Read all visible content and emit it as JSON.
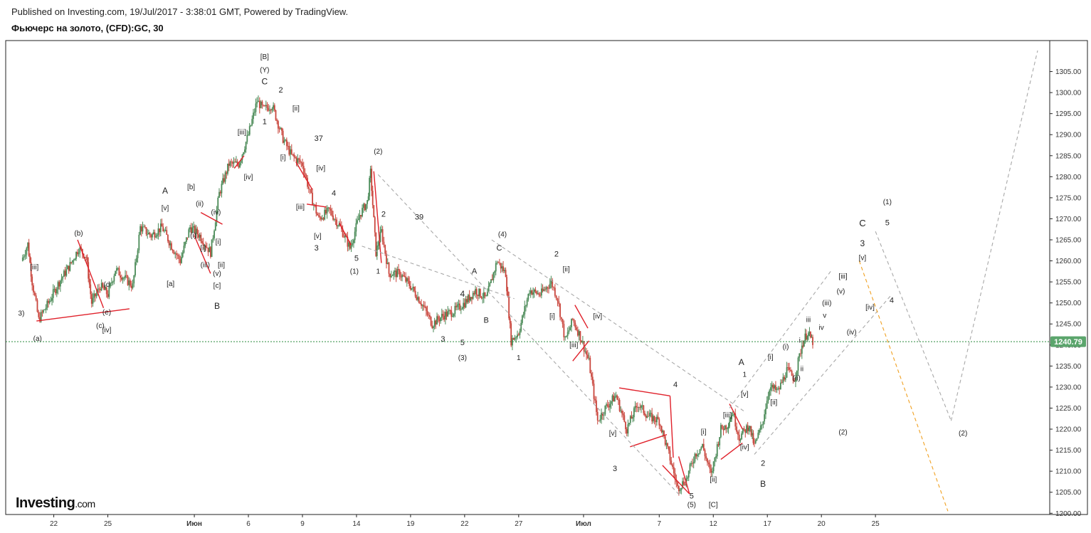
{
  "header": {
    "published": "Published on Investing.com, 19/Jul/2017 - 3:38:01 GMT, Powered by TradingView.",
    "title": "Фьючерс на золото, (CFD):GC, 30"
  },
  "logo": {
    "main": "Investing",
    "suffix": ".com"
  },
  "colors": {
    "up": "#4a8a57",
    "down": "#c9453c",
    "trendline": "#e0202a",
    "projection": "#a8a8a8",
    "projection_alt": "#f0a020",
    "accent_label": "#e8961e",
    "channel_label": "#6b7f95",
    "price_badge": "#5ba56c"
  },
  "chart_data": {
    "type": "candlestick",
    "timeframe": "30",
    "ylim": [
      1197,
      1310
    ],
    "yticks": [
      1200,
      1205,
      1210,
      1215,
      1220,
      1225,
      1230,
      1235,
      1240,
      1245,
      1250,
      1255,
      1260,
      1265,
      1270,
      1275,
      1280,
      1285,
      1290,
      1295,
      1300,
      1305
    ],
    "ytick_labels": [
      "1200.00",
      "1205.00",
      "1210.00",
      "1215.00",
      "1220.00",
      "1225.00",
      "1230.00",
      "1235.00",
      "1240.00",
      "1245.00",
      "1250.00",
      "1255.00",
      "1260.00",
      "1265.00",
      "1270.00",
      "1275.00",
      "1280.00",
      "1285.00",
      "1290.00",
      "1295.00",
      "1300.00",
      "1305.00"
    ],
    "xlim": [
      0,
      94
    ],
    "xticks": [
      {
        "t": 3,
        "label": "22",
        "month": false
      },
      {
        "t": 8,
        "label": "25",
        "month": false
      },
      {
        "t": 16,
        "label": "Июн",
        "month": true
      },
      {
        "t": 21,
        "label": "6",
        "month": false
      },
      {
        "t": 26,
        "label": "9",
        "month": false
      },
      {
        "t": 31,
        "label": "14",
        "month": false
      },
      {
        "t": 36,
        "label": "19",
        "month": false
      },
      {
        "t": 41,
        "label": "22",
        "month": false
      },
      {
        "t": 46,
        "label": "27",
        "month": false
      },
      {
        "t": 52,
        "label": "Июл",
        "month": true
      },
      {
        "t": 59,
        "label": "7",
        "month": false
      },
      {
        "t": 64,
        "label": "12",
        "month": false
      },
      {
        "t": 69,
        "label": "17",
        "month": false
      },
      {
        "t": 74,
        "label": "20",
        "month": false
      },
      {
        "t": 79,
        "label": "25",
        "month": false
      }
    ],
    "last_price": 1240.79,
    "last_price_label": "1240.79",
    "price_path": [
      [
        0,
        1260
      ],
      [
        0.6,
        1264
      ],
      [
        1,
        1255
      ],
      [
        1.6,
        1246
      ],
      [
        2.5,
        1250
      ],
      [
        3.5,
        1255
      ],
      [
        4.5,
        1259
      ],
      [
        5.3,
        1263
      ],
      [
        6,
        1261
      ],
      [
        6.5,
        1250
      ],
      [
        7.3,
        1254
      ],
      [
        8,
        1252
      ],
      [
        8.7,
        1258
      ],
      [
        9.5,
        1256
      ],
      [
        10.3,
        1254
      ],
      [
        11,
        1268
      ],
      [
        12,
        1266
      ],
      [
        13,
        1268
      ],
      [
        14,
        1263
      ],
      [
        14.7,
        1260
      ],
      [
        15.6,
        1268
      ],
      [
        16.5,
        1266
      ],
      [
        17.5,
        1262
      ],
      [
        18.3,
        1276
      ],
      [
        19.2,
        1283
      ],
      [
        20.1,
        1283
      ],
      [
        21,
        1290
      ],
      [
        21.8,
        1298
      ],
      [
        22.4,
        1296
      ],
      [
        23.2,
        1297
      ],
      [
        24.2,
        1289
      ],
      [
        25,
        1285
      ],
      [
        26,
        1283
      ],
      [
        26.7,
        1276
      ],
      [
        27.5,
        1270
      ],
      [
        28.5,
        1272
      ],
      [
        29.5,
        1268
      ],
      [
        30.4,
        1263
      ],
      [
        31.3,
        1271
      ],
      [
        32,
        1274
      ],
      [
        32.3,
        1281
      ],
      [
        32.8,
        1262
      ],
      [
        33.3,
        1267
      ],
      [
        34,
        1257
      ],
      [
        35,
        1257
      ],
      [
        36,
        1254
      ],
      [
        37,
        1250
      ],
      [
        38,
        1245
      ],
      [
        39,
        1247
      ],
      [
        40,
        1248
      ],
      [
        41,
        1250
      ],
      [
        42,
        1253
      ],
      [
        43,
        1251
      ],
      [
        44,
        1260
      ],
      [
        44.8,
        1257
      ],
      [
        45.3,
        1241
      ],
      [
        46,
        1243
      ],
      [
        47,
        1253
      ],
      [
        48,
        1252
      ],
      [
        49,
        1255
      ],
      [
        49.6,
        1251
      ],
      [
        50.3,
        1241
      ],
      [
        51,
        1246
      ],
      [
        51.7,
        1242
      ],
      [
        52.5,
        1236
      ],
      [
        53.3,
        1222
      ],
      [
        54,
        1225
      ],
      [
        55,
        1228
      ],
      [
        56,
        1220
      ],
      [
        57,
        1226
      ],
      [
        58,
        1223
      ],
      [
        59,
        1222
      ],
      [
        60,
        1213
      ],
      [
        60.7,
        1206
      ],
      [
        61.5,
        1208
      ],
      [
        62.3,
        1214
      ],
      [
        63,
        1216
      ],
      [
        63.8,
        1209
      ],
      [
        64.7,
        1220
      ],
      [
        65.3,
        1221
      ],
      [
        65.8,
        1224
      ],
      [
        66.4,
        1218
      ],
      [
        67.3,
        1221
      ],
      [
        67.8,
        1216
      ],
      [
        68.5,
        1221
      ],
      [
        69.2,
        1230
      ],
      [
        70,
        1229
      ],
      [
        70.8,
        1234
      ],
      [
        71.5,
        1232
      ],
      [
        72.2,
        1240
      ],
      [
        72.7,
        1243
      ],
      [
        73.2,
        1240.79
      ]
    ],
    "trendlines": [
      {
        "color": "red",
        "points": [
          [
            1.4,
            1245.7
          ],
          [
            10,
            1248.6
          ]
        ]
      },
      {
        "color": "red",
        "points": [
          [
            5.2,
            1265
          ],
          [
            7.6,
            1248.8
          ]
        ]
      },
      {
        "color": "red",
        "points": [
          [
            16.6,
            1271.5
          ],
          [
            18.6,
            1268.7
          ]
        ]
      },
      {
        "color": "red",
        "points": [
          [
            16.0,
            1266
          ],
          [
            17.5,
            1257
          ]
        ]
      },
      {
        "color": "red",
        "points": [
          [
            19.7,
            1282
          ],
          [
            20.6,
            1285
          ]
        ]
      },
      {
        "color": "red",
        "points": [
          [
            25.4,
            1283.5
          ],
          [
            26.9,
            1277
          ]
        ]
      },
      {
        "color": "red",
        "points": [
          [
            26.4,
            1273.5
          ],
          [
            28.2,
            1272.8
          ]
        ]
      },
      {
        "color": "red",
        "points": [
          [
            29.4,
            1269
          ],
          [
            30.5,
            1263.8
          ]
        ]
      },
      {
        "color": "red",
        "points": [
          [
            32.6,
            1281.3
          ],
          [
            33.3,
            1259.5
          ]
        ]
      },
      {
        "color": "red",
        "points": [
          [
            51.2,
            1249.5
          ],
          [
            52.4,
            1244
          ]
        ]
      },
      {
        "color": "red",
        "points": [
          [
            51.0,
            1236.2
          ],
          [
            52.5,
            1241
          ]
        ]
      },
      {
        "color": "red",
        "points": [
          [
            55.3,
            1229.8
          ],
          [
            60,
            1227.9
          ]
        ]
      },
      {
        "color": "red",
        "points": [
          [
            56.3,
            1215.8
          ],
          [
            59.7,
            1218.7
          ]
        ]
      },
      {
        "color": "red",
        "points": [
          [
            60,
            1227.9
          ],
          [
            60.3,
            1213.2
          ]
        ]
      },
      {
        "color": "red",
        "points": [
          [
            59.3,
            1211.4
          ],
          [
            61.8,
            1204.6
          ]
        ]
      },
      {
        "color": "red",
        "points": [
          [
            60.8,
            1213.5
          ],
          [
            61.8,
            1204.6
          ]
        ]
      },
      {
        "color": "red",
        "points": [
          [
            64.7,
            1212.8
          ],
          [
            66.7,
            1216.7
          ]
        ]
      },
      {
        "color": "red",
        "points": [
          [
            65.5,
            1226
          ],
          [
            66.7,
            1220
          ]
        ]
      },
      {
        "color": "gray_dash",
        "points": [
          [
            33,
            1280.5
          ],
          [
            61,
            1204
          ]
        ]
      },
      {
        "color": "gray_dash",
        "points": [
          [
            43.5,
            1265
          ],
          [
            67,
            1224
          ]
        ]
      },
      {
        "color": "gray_dash",
        "points": [
          [
            31.5,
            1263.5
          ],
          [
            45.6,
            1251
          ]
        ]
      },
      {
        "color": "gray_dash",
        "points": [
          [
            65.5,
            1225
          ],
          [
            75,
            1258
          ]
        ]
      },
      {
        "color": "gray_dash",
        "points": [
          [
            67.8,
            1214
          ],
          [
            80.5,
            1252
          ]
        ]
      },
      {
        "color": "gray_dash",
        "points": [
          [
            79,
            1267
          ],
          [
            86,
            1222
          ]
        ]
      },
      {
        "color": "gray_dash",
        "points": [
          [
            86,
            1222
          ],
          [
            94,
            1310
          ]
        ]
      },
      {
        "color": "orange_dash",
        "points": [
          [
            77.5,
            1260
          ],
          [
            85.7,
            1200.5
          ]
        ]
      }
    ],
    "annotations": [
      {
        "t": 1.2,
        "p": 1258,
        "text": "[iii]"
      },
      {
        "t": 0,
        "p": 1247,
        "text": "3)"
      },
      {
        "t": 1.5,
        "p": 1241,
        "text": "(a)"
      },
      {
        "t": 5.3,
        "p": 1266,
        "text": "(b)"
      },
      {
        "t": 7.3,
        "p": 1244,
        "text": "(c)"
      },
      {
        "t": 7.9,
        "p": 1253.8,
        "text": "(d"
      },
      {
        "t": 7.9,
        "p": 1247.2,
        "text": "(e)"
      },
      {
        "t": 7.9,
        "p": 1243,
        "text": "[iv]"
      },
      {
        "t": 13.3,
        "p": 1276,
        "text": "A",
        "size": 12
      },
      {
        "t": 13.3,
        "p": 1272,
        "text": "[v]"
      },
      {
        "t": 13.8,
        "p": 1254,
        "text": "[a]"
      },
      {
        "t": 15.7,
        "p": 1277,
        "text": "[b]"
      },
      {
        "t": 16.5,
        "p": 1273,
        "text": "(ii)"
      },
      {
        "t": 18,
        "p": 1271,
        "text": "(iv)"
      },
      {
        "t": 15.9,
        "p": 1265.5,
        "text": "(i)"
      },
      {
        "t": 16.8,
        "p": 1262.5,
        "text": "[i]"
      },
      {
        "t": 18.2,
        "p": 1264,
        "text": "[i]"
      },
      {
        "t": 17,
        "p": 1258.5,
        "text": "(iii)"
      },
      {
        "t": 18.5,
        "p": 1258.5,
        "text": "[ii]"
      },
      {
        "t": 18.1,
        "p": 1256.5,
        "text": "(v)"
      },
      {
        "t": 18.1,
        "p": 1253.6,
        "text": "[c]"
      },
      {
        "t": 18.1,
        "p": 1248.6,
        "text": "B",
        "size": 12
      },
      {
        "t": 22.5,
        "p": 1308,
        "text": "[B]"
      },
      {
        "t": 22.5,
        "p": 1304.8,
        "text": "(Y)"
      },
      {
        "t": 22.5,
        "p": 1302,
        "text": "C",
        "size": 12
      },
      {
        "t": 24,
        "p": 1300,
        "text": "2",
        "size": 11
      },
      {
        "t": 22.5,
        "p": 1292.5,
        "text": "1",
        "size": 11
      },
      {
        "t": 20.4,
        "p": 1290,
        "text": "[iii]"
      },
      {
        "t": 25.4,
        "p": 1295.7,
        "text": "[ii]"
      },
      {
        "t": 27.5,
        "p": 1288.5,
        "text": "37",
        "size": 11,
        "color": "channel"
      },
      {
        "t": 24.2,
        "p": 1284,
        "text": "[i]"
      },
      {
        "t": 21,
        "p": 1279.4,
        "text": "[iv]"
      },
      {
        "t": 27.7,
        "p": 1281.5,
        "text": "[iv]"
      },
      {
        "t": 28.9,
        "p": 1275.5,
        "text": "4",
        "size": 11
      },
      {
        "t": 25.8,
        "p": 1272.3,
        "text": "[iii]"
      },
      {
        "t": 27.4,
        "p": 1265.3,
        "text": "[v]"
      },
      {
        "t": 27.3,
        "p": 1262.5,
        "text": "3",
        "size": 11
      },
      {
        "t": 31,
        "p": 1260,
        "text": "5",
        "size": 11
      },
      {
        "t": 30.8,
        "p": 1257,
        "text": "(1)"
      },
      {
        "t": 33,
        "p": 1285.5,
        "text": "(2)"
      },
      {
        "t": 33.5,
        "p": 1270.5,
        "text": "2",
        "size": 11
      },
      {
        "t": 36.8,
        "p": 1269.8,
        "text": "39",
        "size": 11,
        "color": "channel"
      },
      {
        "t": 33,
        "p": 1257,
        "text": "1",
        "size": 10
      },
      {
        "t": 44.5,
        "p": 1265.8,
        "text": "(4)"
      },
      {
        "t": 44.2,
        "p": 1262.5,
        "text": "C",
        "size": 11
      },
      {
        "t": 41.9,
        "p": 1257,
        "text": "A",
        "size": 11
      },
      {
        "t": 40.8,
        "p": 1251.5,
        "text": "4",
        "size": 12
      },
      {
        "t": 43,
        "p": 1245.3,
        "text": "B",
        "size": 11
      },
      {
        "t": 39,
        "p": 1240.8,
        "text": "3",
        "size": 11
      },
      {
        "t": 40.8,
        "p": 1240,
        "text": "5",
        "size": 11
      },
      {
        "t": 40.8,
        "p": 1236.4,
        "text": "(3)"
      },
      {
        "t": 46,
        "p": 1236.4,
        "text": "1",
        "size": 10
      },
      {
        "t": 49.5,
        "p": 1261,
        "text": "2",
        "size": 11
      },
      {
        "t": 50.4,
        "p": 1257.5,
        "text": "[ii]"
      },
      {
        "t": 49.1,
        "p": 1246.3,
        "text": "[i]"
      },
      {
        "t": 53.3,
        "p": 1246.3,
        "text": "[iv]"
      },
      {
        "t": 51.1,
        "p": 1239.5,
        "text": "[iii]"
      },
      {
        "t": 54.7,
        "p": 1218.5,
        "text": "[v]"
      },
      {
        "t": 54.9,
        "p": 1210,
        "text": "3",
        "size": 11
      },
      {
        "t": 60.5,
        "p": 1230,
        "text": "4",
        "size": 11
      },
      {
        "t": 62,
        "p": 1203.5,
        "text": "5",
        "size": 11
      },
      {
        "t": 62,
        "p": 1201.5,
        "text": "(5)"
      },
      {
        "t": 63.1,
        "p": 1218.8,
        "text": "[i]"
      },
      {
        "t": 64,
        "p": 1207.5,
        "text": "[ii]"
      },
      {
        "t": 64,
        "p": 1201.5,
        "text": "[C]"
      },
      {
        "t": 65.3,
        "p": 1222.8,
        "text": "[iii]"
      },
      {
        "t": 66.9,
        "p": 1215.2,
        "text": "[iv]"
      },
      {
        "t": 66.9,
        "p": 1227.8,
        "text": "[v]"
      },
      {
        "t": 66.9,
        "p": 1232.4,
        "text": "1",
        "size": 10
      },
      {
        "t": 66.6,
        "p": 1235.2,
        "text": "A",
        "size": 12,
        "color": "accent"
      },
      {
        "t": 68.6,
        "p": 1211.3,
        "text": "2",
        "size": 11
      },
      {
        "t": 68.6,
        "p": 1206.3,
        "text": "B",
        "size": 12,
        "color": "accent"
      },
      {
        "t": 69.6,
        "p": 1225.8,
        "text": "[ii]"
      },
      {
        "t": 69.3,
        "p": 1236.6,
        "text": "[i]"
      },
      {
        "t": 70.7,
        "p": 1239,
        "text": "(i)"
      },
      {
        "t": 71.7,
        "p": 1231.6,
        "text": "(ii)"
      },
      {
        "t": 72.2,
        "p": 1233.8,
        "text": "ii",
        "size": 10
      },
      {
        "t": 72,
        "p": 1240.6,
        "text": "i",
        "size": 10
      },
      {
        "t": 72.8,
        "p": 1245.5,
        "text": "iii",
        "size": 10
      },
      {
        "t": 74,
        "p": 1243.6,
        "text": "iv",
        "size": 10
      },
      {
        "t": 74.3,
        "p": 1246.5,
        "text": "v",
        "size": 10
      },
      {
        "t": 74.5,
        "p": 1249.4,
        "text": "(iii)"
      },
      {
        "t": 75.8,
        "p": 1252.2,
        "text": "(v)"
      },
      {
        "t": 76,
        "p": 1255.8,
        "text": "[iii]"
      },
      {
        "t": 76.8,
        "p": 1242.5,
        "text": "(iv)"
      },
      {
        "t": 78.5,
        "p": 1248.4,
        "text": "[iv]"
      },
      {
        "t": 77.8,
        "p": 1260.2,
        "text": "[v]"
      },
      {
        "t": 77.8,
        "p": 1263.5,
        "text": "3",
        "size": 12
      },
      {
        "t": 77.8,
        "p": 1268.2,
        "text": "C",
        "size": 13,
        "color": "accent"
      },
      {
        "t": 80.1,
        "p": 1268.5,
        "text": "5",
        "size": 11
      },
      {
        "t": 80.1,
        "p": 1273.5,
        "text": "(1)"
      },
      {
        "t": 80.5,
        "p": 1250,
        "text": "4",
        "size": 11
      },
      {
        "t": 76,
        "p": 1218.7,
        "text": "(2)"
      },
      {
        "t": 87.1,
        "p": 1218.5,
        "text": "(2)"
      }
    ]
  }
}
